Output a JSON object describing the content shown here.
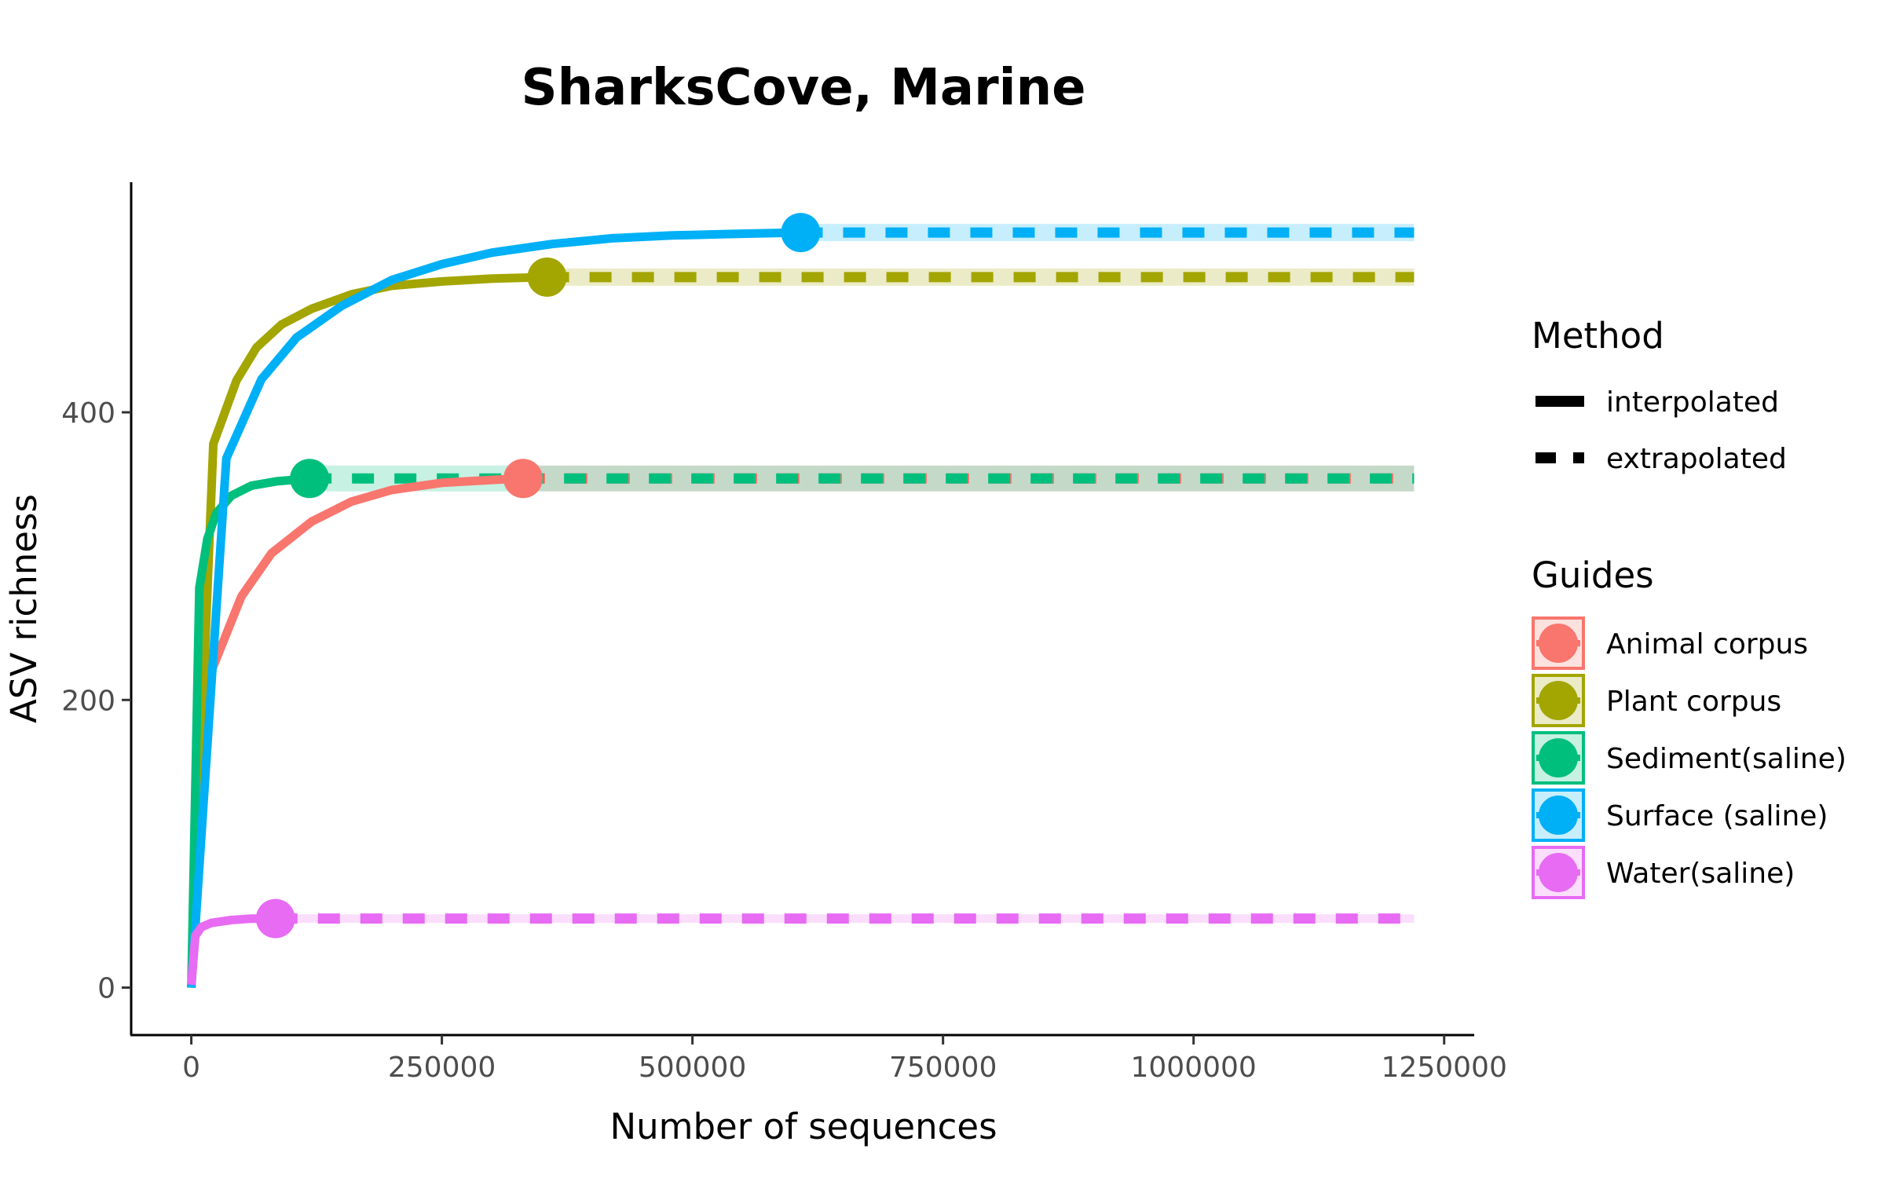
{
  "chart_data": {
    "type": "line",
    "title": "SharksCove, Marine",
    "xlabel": "Number of sequences",
    "ylabel": "ASV richness",
    "xlim": [
      -60000,
      1280000
    ],
    "ylim": [
      -33,
      560
    ],
    "x_ticks": [
      0,
      250000,
      500000,
      750000,
      1000000,
      1250000
    ],
    "x_tick_labels": [
      "0",
      "250000",
      "500000",
      "750000",
      "1000000",
      "1250000"
    ],
    "y_ticks": [
      0,
      200,
      400
    ],
    "y_tick_labels": [
      "0",
      "200",
      "400"
    ],
    "grid": false,
    "legend_position": "right",
    "legends": [
      {
        "title": "Method",
        "entries": [
          {
            "label": "interpolated",
            "linetype": "solid"
          },
          {
            "label": "extrapolated",
            "linetype": "dashed"
          }
        ]
      },
      {
        "title": "Guides",
        "entries": [
          {
            "label": "Animal corpus",
            "color": "#F8766D"
          },
          {
            "label": "Plant corpus",
            "color": "#A3A500"
          },
          {
            "label": "Sediment(saline)",
            "color": "#00BF7D"
          },
          {
            "label": "Surface (saline)",
            "color": "#00B0F6"
          },
          {
            "label": "Water(saline)",
            "color": "#E76BF3"
          }
        ]
      }
    ],
    "x_max": 1220000,
    "series": [
      {
        "name": "Animal corpus",
        "color": "#F8766D",
        "observed": {
          "x": 331000,
          "y": 354
        },
        "interpolated": [
          [
            20000,
            220
          ],
          [
            50000,
            272
          ],
          [
            80000,
            302
          ],
          [
            120000,
            324
          ],
          [
            160000,
            338
          ],
          [
            200000,
            346
          ],
          [
            250000,
            351
          ],
          [
            300000,
            353
          ],
          [
            331000,
            354
          ]
        ],
        "band": 9
      },
      {
        "name": "Plant corpus",
        "color": "#A3A500",
        "observed": {
          "x": 355000,
          "y": 494
        },
        "interpolated": [
          [
            0,
            0
          ],
          [
            22000,
            378
          ],
          [
            45000,
            422
          ],
          [
            65000,
            445
          ],
          [
            90000,
            461
          ],
          [
            120000,
            472
          ],
          [
            160000,
            482
          ],
          [
            200000,
            488
          ],
          [
            250000,
            491
          ],
          [
            300000,
            493
          ],
          [
            355000,
            494
          ]
        ],
        "band": 6
      },
      {
        "name": "Sediment(saline)",
        "color": "#00BF7D",
        "observed": {
          "x": 118000,
          "y": 354
        },
        "interpolated": [
          [
            0,
            0
          ],
          [
            8000,
            278
          ],
          [
            16000,
            312
          ],
          [
            25000,
            330
          ],
          [
            40000,
            342
          ],
          [
            60000,
            349
          ],
          [
            85000,
            352
          ],
          [
            118000,
            354
          ]
        ],
        "band": 9
      },
      {
        "name": "Surface (saline)",
        "color": "#00B0F6",
        "observed": {
          "x": 608000,
          "y": 525
        },
        "interpolated": [
          [
            0,
            0
          ],
          [
            35000,
            368
          ],
          [
            70000,
            423
          ],
          [
            105000,
            452
          ],
          [
            150000,
            474
          ],
          [
            200000,
            492
          ],
          [
            250000,
            503
          ],
          [
            300000,
            511
          ],
          [
            360000,
            517
          ],
          [
            420000,
            521
          ],
          [
            480000,
            523
          ],
          [
            540000,
            524
          ],
          [
            608000,
            525
          ]
        ],
        "band": 6
      },
      {
        "name": "Water(saline)",
        "color": "#E76BF3",
        "observed": {
          "x": 84000,
          "y": 48
        },
        "interpolated": [
          [
            0,
            2
          ],
          [
            4000,
            36
          ],
          [
            10000,
            42
          ],
          [
            20000,
            45
          ],
          [
            40000,
            47
          ],
          [
            60000,
            48
          ],
          [
            84000,
            48
          ]
        ],
        "band": 3
      }
    ]
  }
}
